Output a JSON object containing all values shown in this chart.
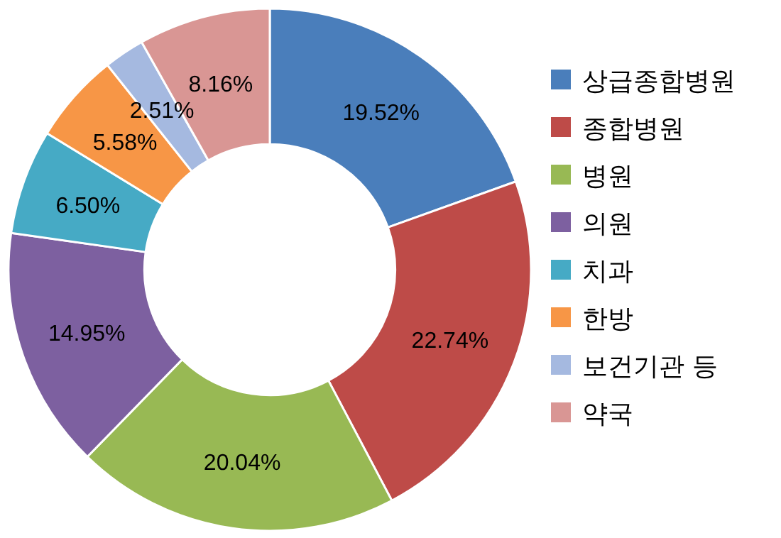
{
  "chart_data": {
    "type": "donut",
    "categories": [
      "상급종합병원",
      "종합병원",
      "병원",
      "의원",
      "치과",
      "한방",
      "보건기관 등",
      "약국"
    ],
    "values": [
      19.52,
      22.74,
      20.04,
      14.95,
      6.5,
      5.58,
      2.51,
      8.16
    ],
    "colors": [
      "#4a7ebb",
      "#be4b48",
      "#98b954",
      "#7d60a0",
      "#46aac5",
      "#f79646",
      "#a5b9e0",
      "#d99694"
    ],
    "value_labels": [
      "19.52%",
      "22.74%",
      "20.04%",
      "14.95%",
      "6.50%",
      "5.58%",
      "2.51%",
      "8.16%"
    ],
    "legend": "right"
  }
}
